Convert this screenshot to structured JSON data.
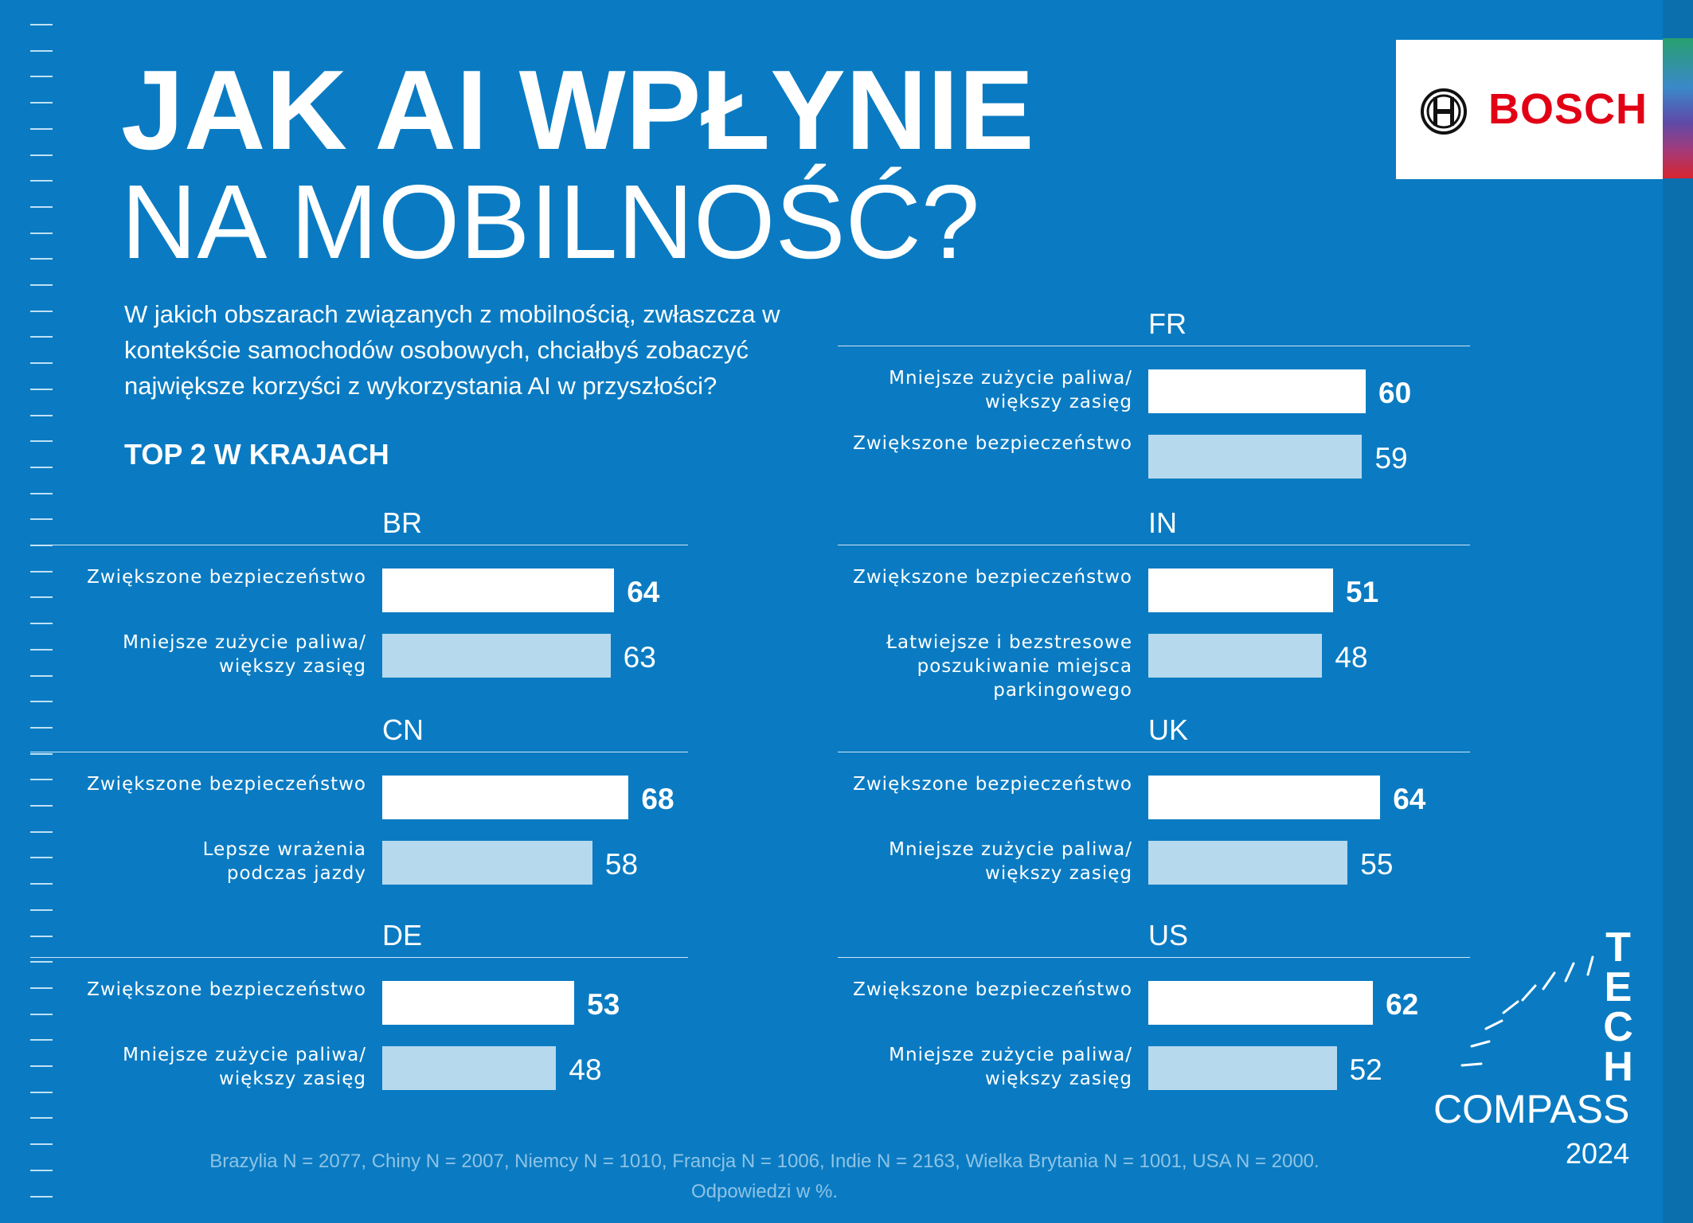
{
  "title_line1": "JAK AI WPŁYNIE",
  "title_line2": "NA MOBILNOŚĆ?",
  "question": "W jakich obszarach związanych z mobilnością, zwłaszcza w kontekście samochodów osobowych, chciałbyś zobaczyć największe korzyści z wykorzystania AI w przyszłości?",
  "subtitle": "TOP 2 W KRAJACH",
  "logo": {
    "text": "BOSCH",
    "icon": "bosch-armature-icon",
    "color": "#e20015"
  },
  "colors": {
    "background": "#0a7bc2",
    "first_bar": "#ffffff",
    "second_bar": "#b6d9ee"
  },
  "chart_data": {
    "type": "bar",
    "orientation": "horizontal",
    "unit": "%",
    "groups": [
      {
        "country": "BR",
        "items": [
          {
            "label": "Zwiększone bezpieczeństwo",
            "value": 64
          },
          {
            "label": "Mniejsze zużycie paliwa/ większy zasięg",
            "value": 63
          }
        ]
      },
      {
        "country": "CN",
        "items": [
          {
            "label": "Zwiększone bezpieczeństwo",
            "value": 68
          },
          {
            "label": "Lepsze wrażenia podczas jazdy",
            "value": 58
          }
        ]
      },
      {
        "country": "DE",
        "items": [
          {
            "label": "Zwiększone bezpieczeństwo",
            "value": 53
          },
          {
            "label": "Mniejsze zużycie paliwa/ większy zasięg",
            "value": 48
          }
        ]
      },
      {
        "country": "FR",
        "items": [
          {
            "label": "Mniejsze zużycie paliwa/ większy zasięg",
            "value": 60
          },
          {
            "label": "Zwiększone bezpieczeństwo",
            "value": 59
          }
        ]
      },
      {
        "country": "IN",
        "items": [
          {
            "label": "Zwiększone bezpieczeństwo",
            "value": 51
          },
          {
            "label": "Łatwiejsze i bezstresowe poszukiwanie miejsca parkingowego",
            "value": 48
          }
        ]
      },
      {
        "country": "UK",
        "items": [
          {
            "label": "Zwiększone bezpieczeństwo",
            "value": 64
          },
          {
            "label": "Mniejsze zużycie paliwa/ większy zasięg",
            "value": 55
          }
        ]
      },
      {
        "country": "US",
        "items": [
          {
            "label": "Zwiększone bezpieczeństwo",
            "value": 62
          },
          {
            "label": "Mniejsze zużycie paliwa/ większy zasięg",
            "value": 52
          }
        ]
      }
    ]
  },
  "footer": {
    "line1": "Brazylia N = 2077, Chiny N = 2007, Niemcy N = 1010, Francja N = 1006, Indie N = 2163, Wielka Brytania N = 1001, USA N = 2000.",
    "line2": "Odpowiedzi w %."
  },
  "tech_compass": {
    "word1": "TECH",
    "word2": "COMPASS",
    "year": "2024"
  }
}
